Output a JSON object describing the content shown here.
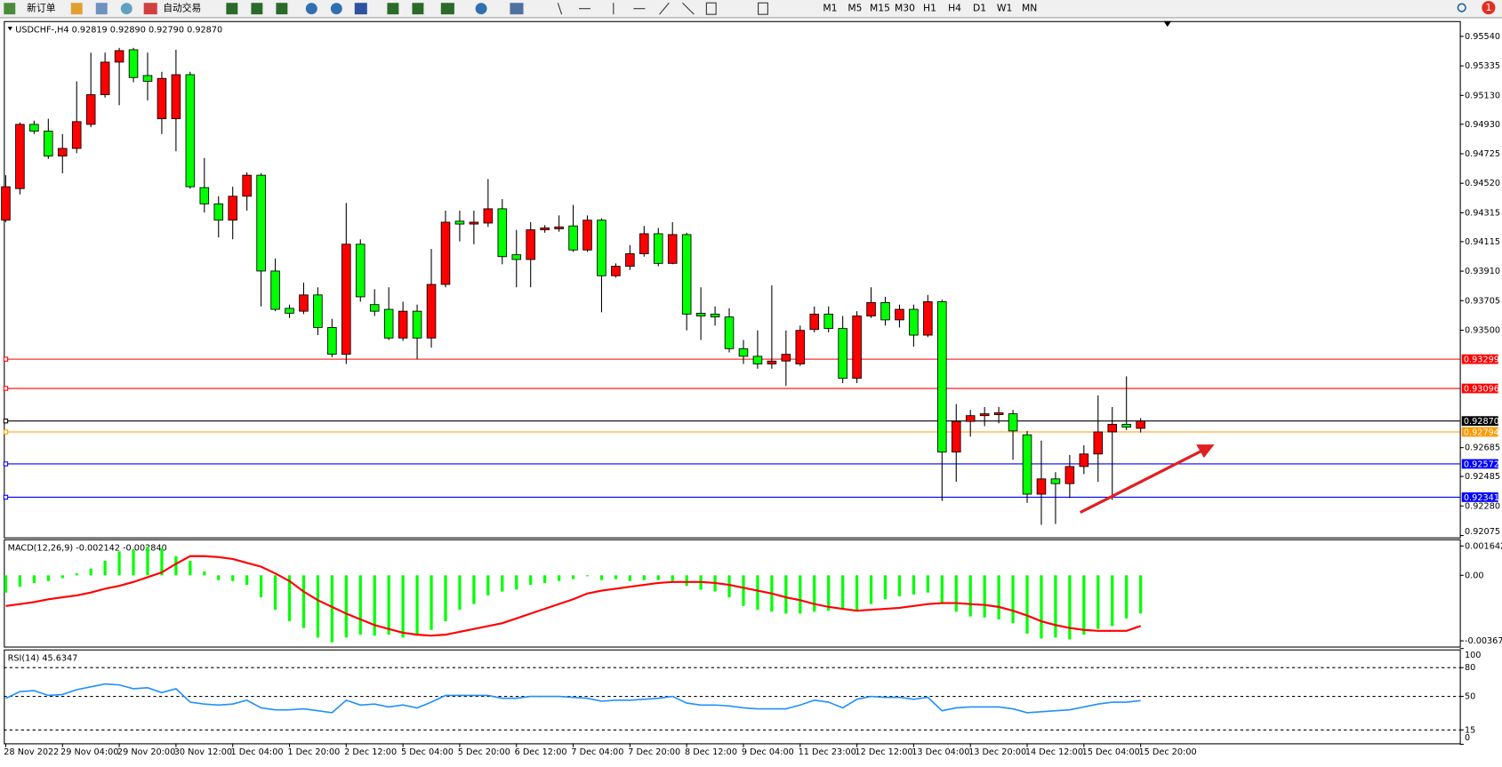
{
  "toolbar": {
    "new_order": "新订单",
    "auto_trading": "自动交易",
    "timeframes": [
      "M1",
      "M5",
      "M15",
      "M30",
      "H1",
      "H4",
      "D1",
      "W1",
      "MN"
    ],
    "notifications": "1"
  },
  "chart_data": [
    {
      "type": "candlestick",
      "title": "USDCHF-,H4  0.92819 0.92890 0.92790 0.92870",
      "categories": [
        "28 Nov 2022",
        null,
        null,
        null,
        "29 Nov 04:00",
        null,
        null,
        null,
        "29 Nov 20:00",
        null,
        null,
        null,
        "30 Nov 12:00",
        null,
        null,
        null,
        "1 Dec 04:00",
        null,
        null,
        null,
        "1 Dec 20:00",
        null,
        null,
        null,
        "2 Dec 12:00",
        null,
        null,
        null,
        "5 Dec 04:00",
        null,
        null,
        null,
        "5 Dec 20:00",
        null,
        null,
        null,
        "6 Dec 12:00",
        null,
        null,
        null,
        "7 Dec 04:00",
        null,
        null,
        null,
        "7 Dec 20:00",
        null,
        null,
        null,
        "8 Dec 12:00",
        null,
        null,
        null,
        "9 Dec 04:00",
        null,
        null,
        null,
        "11 Dec 23:00",
        null,
        null,
        null,
        "12 Dec 12:00",
        null,
        null,
        null,
        "13 Dec 04:00",
        null,
        null,
        null,
        "13 Dec 20:00",
        null,
        null,
        null,
        "14 Dec 12:00",
        null,
        null,
        null,
        "15 Dec 04:00",
        null,
        null,
        null,
        "15 Dec 20:00"
      ],
      "open": [
        0.94264,
        0.94483,
        0.94929,
        0.94882,
        0.94709,
        0.94762,
        0.94929,
        0.95135,
        0.95361,
        0.95447,
        0.95268,
        0.94968,
        0.94968,
        0.95274,
        0.9449,
        0.94377,
        0.94264,
        0.9443,
        0.94576,
        0.93911,
        0.93652,
        0.93632,
        0.93745,
        0.93519,
        0.93333,
        0.94097,
        0.93678,
        0.93645,
        0.93446,
        0.93632,
        0.93446,
        0.93818,
        0.94257,
        0.94237,
        0.94244,
        0.94343,
        0.94024,
        0.93991,
        0.94197,
        0.94204,
        0.94224,
        0.94057,
        0.94264,
        0.93878,
        0.93944,
        0.94031,
        0.9417,
        0.93964,
        0.94164,
        0.93618,
        0.93612,
        0.93592,
        0.93372,
        0.93319,
        0.93266,
        0.93286,
        0.93266,
        0.93505,
        0.93612,
        0.93512,
        0.93166,
        0.93599,
        0.93692,
        0.93572,
        0.93645,
        0.93466,
        0.93698,
        0.92654,
        0.92867,
        0.92907,
        0.92914,
        0.9292,
        0.92774,
        0.92362,
        0.92468,
        0.92435,
        0.92554,
        0.92641,
        0.92794,
        0.92847,
        0.92819
      ],
      "high": [
        0.94576,
        0.94942,
        0.94955,
        0.94968,
        0.94862,
        0.95228,
        0.95427,
        0.95427,
        0.9546,
        0.9546,
        0.95427,
        0.95294,
        0.95447,
        0.95294,
        0.94696,
        0.9443,
        0.94496,
        0.94596,
        0.94589,
        0.93998,
        0.93678,
        0.93831,
        0.93798,
        0.93579,
        0.94383,
        0.94131,
        0.93785,
        0.93798,
        0.93698,
        0.93678,
        0.94064,
        0.9433,
        0.9433,
        0.9433,
        0.94549,
        0.9441,
        0.94197,
        0.9425,
        0.9423,
        0.94297,
        0.9437,
        0.94297,
        0.94277,
        0.93964,
        0.94091,
        0.94224,
        0.9421,
        0.9425,
        0.94177,
        0.93798,
        0.93665,
        0.93652,
        0.93432,
        0.93499,
        0.93811,
        0.93499,
        0.93532,
        0.93665,
        0.93665,
        0.93599,
        0.93632,
        0.93798,
        0.93732,
        0.93678,
        0.93678,
        0.93745,
        0.93712,
        0.92987,
        0.92947,
        0.92967,
        0.92967,
        0.92947,
        0.92801,
        0.92734,
        0.92515,
        0.92634,
        0.92701,
        0.93047,
        0.92967,
        0.9318,
        0.9289
      ],
      "low": [
        0.9425,
        0.94443,
        0.94862,
        0.94689,
        0.94589,
        0.94729,
        0.94909,
        0.95115,
        0.95062,
        0.95221,
        0.95095,
        0.94862,
        0.94742,
        0.94483,
        0.94317,
        0.94144,
        0.94131,
        0.9433,
        0.93665,
        0.93632,
        0.93585,
        0.93612,
        0.93466,
        0.93313,
        0.93266,
        0.93698,
        0.93599,
        0.93432,
        0.93426,
        0.93299,
        0.93379,
        0.93798,
        0.94117,
        0.94097,
        0.94217,
        0.93958,
        0.93798,
        0.93798,
        0.94177,
        0.94184,
        0.94044,
        0.94044,
        0.93625,
        0.93865,
        0.93918,
        0.94011,
        0.93944,
        0.93958,
        0.93499,
        0.93432,
        0.93532,
        0.93346,
        0.93266,
        0.93233,
        0.93233,
        0.93113,
        0.93253,
        0.93485,
        0.93485,
        0.93133,
        0.93133,
        0.93585,
        0.93532,
        0.93519,
        0.93386,
        0.93452,
        0.92315,
        0.92448,
        0.92761,
        0.92834,
        0.92854,
        0.92601,
        0.92302,
        0.92149,
        0.92155,
        0.92335,
        0.92501,
        0.92448,
        0.92322,
        0.92807,
        0.9279
      ],
      "close": [
        0.94496,
        0.94929,
        0.94882,
        0.94709,
        0.94762,
        0.94948,
        0.95135,
        0.95361,
        0.95441,
        0.95254,
        0.95228,
        0.95248,
        0.95274,
        0.94496,
        0.94377,
        0.94264,
        0.9443,
        0.94576,
        0.93911,
        0.93645,
        0.93618,
        0.93745,
        0.93519,
        0.93333,
        0.94097,
        0.93732,
        0.93632,
        0.93446,
        0.93632,
        0.93446,
        0.93818,
        0.9425,
        0.94237,
        0.9425,
        0.94343,
        0.94011,
        0.93991,
        0.94197,
        0.9421,
        0.94217,
        0.94057,
        0.94264,
        0.93878,
        0.93944,
        0.94031,
        0.9417,
        0.93964,
        0.94164,
        0.93612,
        0.93599,
        0.93592,
        0.93372,
        0.93319,
        0.93266,
        0.93286,
        0.93333,
        0.93499,
        0.93612,
        0.93512,
        0.93166,
        0.93599,
        0.93692,
        0.93572,
        0.93645,
        0.93466,
        0.93698,
        0.92654,
        0.92867,
        0.92907,
        0.9292,
        0.92927,
        0.92801,
        0.92362,
        0.92468,
        0.92435,
        0.92554,
        0.92641,
        0.92794,
        0.92847,
        0.92827,
        0.9287
      ],
      "up_color": "#ff0000",
      "down_color": "#00ff00",
      "ylim": [
        0.92062,
        0.95646
      ],
      "yticks": [
        {
          "value": 0.9554,
          "label": "0.95540"
        },
        0.95335,
        {
          "value": 0.9513,
          "label": "0.95130"
        },
        {
          "value": 0.9493,
          "label": "0.94930"
        },
        0.94725,
        {
          "value": 0.9452,
          "label": "0.94520"
        },
        0.94315,
        0.94115,
        {
          "value": 0.9391,
          "label": "0.93910"
        },
        0.93705,
        {
          "value": 0.935,
          "label": "0.93500"
        },
        0.92685,
        0.92485,
        {
          "value": 0.9228,
          "label": "0.92280"
        },
        0.92075
      ],
      "levels": [
        {
          "value": 0.93299,
          "color": "#ff0000"
        },
        {
          "value": 0.93096,
          "color": "#ff0000"
        },
        {
          "value": 0.9287,
          "label": "0.92870",
          "color": "#000000"
        },
        {
          "value": 0.92794,
          "color": "#ff9900"
        },
        {
          "value": 0.92572,
          "color": "#0000ff"
        },
        {
          "value": 0.92341,
          "color": "#0000ff"
        }
      ],
      "grid": false
    },
    {
      "type": "macd",
      "title": "MACD(12,26,9) -0.002142 -0.002840",
      "ylim": [
        -0.003996,
        0.002018
      ],
      "yticks": [
        0.001642,
        {
          "value": 0,
          "label": "0.00"
        },
        -0.003674
      ],
      "series": [
        {
          "kind": "bar",
          "color": "#00ff00",
          "values": [
            -0.000967,
            -0.000644,
            -0.00043,
            -0.000322,
            -0.000161,
            0.000107,
            0.000376,
            0.000806,
            0.001343,
            0.00145,
            0.001611,
            0.001504,
            0.001074,
            0.000806,
            0.000215,
            -0.000269,
            -0.000322,
            -0.000537,
            -0.001235,
            -0.001933,
            -0.002578,
            -0.002954,
            -0.003491,
            -0.003759,
            -0.003491,
            -0.003329,
            -0.003383,
            -0.003329,
            -0.003491,
            -0.003383,
            -0.003061,
            -0.002578,
            -0.001933,
            -0.001611,
            -0.001128,
            -0.000913,
            -0.000806,
            -0.000537,
            -0.00043,
            -0.000322,
            -0.000215,
            -5.4e-05,
            -0.000269,
            -0.000215,
            -0.000322,
            -0.000269,
            -0.000269,
            -0.000322,
            -0.000591,
            -0.000806,
            -0.000913,
            -0.001235,
            -0.001718,
            -0.001933,
            -0.002041,
            -0.002148,
            -0.002148,
            -0.002041,
            -0.001987,
            -0.001933,
            -0.001933,
            -0.001611,
            -0.001343,
            -0.001181,
            -0.001074,
            -0.000967,
            -0.001611,
            -0.002041,
            -0.002309,
            -0.002363,
            -0.00247,
            -0.002685,
            -0.003276,
            -0.003544,
            -0.003491,
            -0.003598,
            -0.003329,
            -0.003007,
            -0.002846,
            -0.002417,
            -0.002142
          ]
        },
        {
          "kind": "line",
          "color": "#ff0000",
          "values": [
            -0.001718,
            -0.001611,
            -0.001504,
            -0.001343,
            -0.001235,
            -0.001128,
            -0.000967,
            -0.000752,
            -0.000591,
            -0.000376,
            -0.000107,
            0.000161,
            0.000644,
            0.001074,
            0.001074,
            0.00102,
            0.000913,
            0.000698,
            0.000483,
            0.000107,
            -0.000322,
            -0.000913,
            -0.001396,
            -0.001772,
            -0.002148,
            -0.00247,
            -0.002792,
            -0.003007,
            -0.003222,
            -0.003329,
            -0.003383,
            -0.003329,
            -0.003168,
            -0.003007,
            -0.002846,
            -0.002685,
            -0.002417,
            -0.002148,
            -0.00188,
            -0.001611,
            -0.001343,
            -0.00102,
            -0.000859,
            -0.000752,
            -0.000644,
            -0.000537,
            -0.00043,
            -0.000376,
            -0.000376,
            -0.000376,
            -0.00043,
            -0.000537,
            -0.000698,
            -0.000859,
            -0.00102,
            -0.001235,
            -0.001396,
            -0.001611,
            -0.001772,
            -0.00188,
            -0.001987,
            -0.001933,
            -0.00188,
            -0.001826,
            -0.001718,
            -0.001611,
            -0.001557,
            -0.001557,
            -0.001611,
            -0.001665,
            -0.001772,
            -0.001987,
            -0.002255,
            -0.002578,
            -0.002792,
            -0.002954,
            -0.003061,
            -0.003115,
            -0.003115,
            -0.003115,
            -0.00284
          ]
        }
      ]
    },
    {
      "type": "rsi",
      "title": "RSI(14) 45.6347",
      "ylim": [
        0,
        100
      ],
      "yticks": [
        100,
        80,
        50,
        15,
        0
      ],
      "levels": [
        80,
        50,
        15
      ],
      "color": "#1e90ff",
      "values": [
        48,
        55,
        56,
        51,
        52,
        57,
        60,
        63,
        62,
        58,
        59,
        54,
        58,
        44,
        42,
        41,
        42,
        46,
        38,
        36,
        36,
        37,
        35,
        33,
        46,
        41,
        42,
        39,
        41,
        38,
        44,
        51,
        51,
        51,
        51,
        48,
        48,
        50,
        50,
        50,
        49,
        48,
        45,
        46,
        46,
        47,
        48,
        50,
        43,
        41,
        41,
        40,
        38,
        37,
        37,
        37,
        41,
        46,
        44,
        38,
        47,
        50,
        49,
        49,
        47,
        49,
        35,
        38,
        39,
        39,
        39,
        37,
        33,
        34,
        35,
        36,
        39,
        42,
        44,
        44,
        45.6347
      ]
    }
  ]
}
